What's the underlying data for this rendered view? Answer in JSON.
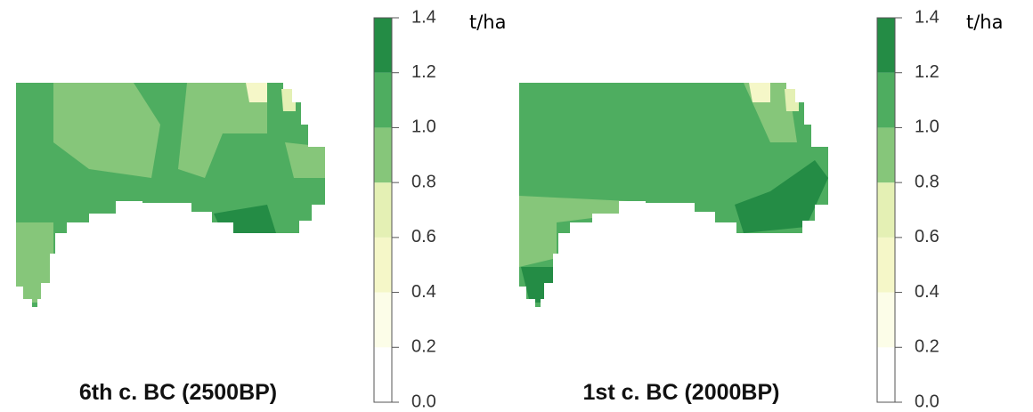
{
  "maps": [
    {
      "title": "6th c. BC (2500BP)",
      "unit": "t/ha",
      "colorbar": {
        "ticks": [
          {
            "value": 0,
            "label": "0.0"
          },
          {
            "value": 0.2,
            "label": "0.2"
          },
          {
            "value": 0.4,
            "label": "0.4"
          },
          {
            "value": 0.6,
            "label": "0.6"
          },
          {
            "value": 0.8,
            "label": "0.8"
          },
          {
            "value": 1,
            "label": "1.0"
          },
          {
            "value": 1.2,
            "label": "1.2"
          },
          {
            "value": 1.4,
            "label": "1.4"
          }
        ],
        "lim": [
          0,
          1.4
        ],
        "colors": [
          "#ffffff",
          "#fcfde8",
          "#f5f7c8",
          "#e4f0b4",
          "#86c67a",
          "#4ead60",
          "#248c45"
        ]
      }
    },
    {
      "title": "1st c. BC (2000BP)",
      "unit": "t/ha",
      "colorbar": {
        "ticks": [
          {
            "value": 0,
            "label": "0.0"
          },
          {
            "value": 0.2,
            "label": "0.2"
          },
          {
            "value": 0.4,
            "label": "0.4"
          },
          {
            "value": 0.6,
            "label": "0.6"
          },
          {
            "value": 0.8,
            "label": "0.8"
          },
          {
            "value": 1,
            "label": "1.0"
          },
          {
            "value": 1.2,
            "label": "1.2"
          },
          {
            "value": 1.4,
            "label": "1.4"
          }
        ],
        "lim": [
          0,
          1.4
        ],
        "colors": [
          "#ffffff",
          "#fcfde8",
          "#f5f7c8",
          "#e4f0b4",
          "#86c67a",
          "#4ead60",
          "#248c45"
        ]
      }
    }
  ]
}
